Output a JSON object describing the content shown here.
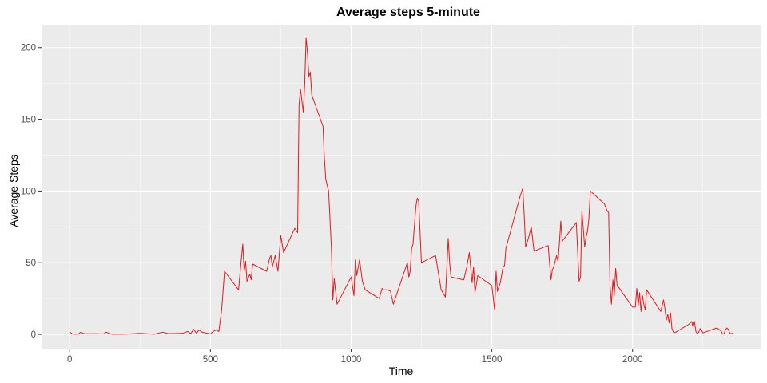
{
  "chart_data": {
    "type": "line",
    "title": "Average steps 5-minute",
    "xlabel": "Time",
    "ylabel": "Average Steps",
    "xlim": [
      -100,
      2455
    ],
    "ylim": [
      -10,
      216
    ],
    "xticks": [
      0,
      500,
      1000,
      1500,
      2000
    ],
    "yticks": [
      0,
      50,
      100,
      150,
      200
    ],
    "grid": true,
    "panel_background": "#ebebeb",
    "line_color": "#e31a1c",
    "series": [
      {
        "x": [
          0,
          10,
          20,
          30,
          40,
          50,
          100,
          120,
          130,
          150,
          200,
          250,
          300,
          330,
          350,
          400,
          420,
          430,
          440,
          450,
          460,
          470,
          500,
          510,
          520,
          530,
          540,
          550,
          600,
          610,
          615,
          620,
          625,
          630,
          640,
          645,
          650,
          700,
          710,
          715,
          720,
          730,
          740,
          750,
          760,
          800,
          810,
          815,
          820,
          830,
          835,
          840,
          845,
          850,
          855,
          860,
          900,
          905,
          910,
          920,
          930,
          935,
          940,
          950,
          1000,
          1010,
          1015,
          1020,
          1030,
          1040,
          1050,
          1100,
          1110,
          1115,
          1120,
          1130,
          1140,
          1150,
          1200,
          1205,
          1210,
          1215,
          1220,
          1230,
          1235,
          1240,
          1250,
          1300,
          1320,
          1335,
          1340,
          1345,
          1350,
          1355,
          1400,
          1410,
          1420,
          1430,
          1435,
          1440,
          1450,
          1500,
          1510,
          1515,
          1520,
          1530,
          1540,
          1545,
          1550,
          1600,
          1610,
          1615,
          1620,
          1630,
          1640,
          1650,
          1700,
          1710,
          1715,
          1720,
          1730,
          1735,
          1740,
          1745,
          1750,
          1800,
          1810,
          1815,
          1820,
          1830,
          1835,
          1840,
          1845,
          1850,
          1900,
          1910,
          1915,
          1920,
          1925,
          1930,
          1935,
          1940,
          1945,
          1950,
          2000,
          2010,
          2015,
          2020,
          2025,
          2030,
          2035,
          2040,
          2045,
          2050,
          2100,
          2110,
          2115,
          2120,
          2125,
          2130,
          2135,
          2140,
          2145,
          2150,
          2200,
          2210,
          2215,
          2220,
          2225,
          2230,
          2235,
          2240,
          2245,
          2250,
          2300,
          2310,
          2315,
          2320,
          2325,
          2330,
          2335,
          2340,
          2345,
          2350,
          2355
        ],
        "y": [
          1.7,
          0.3,
          0.1,
          0.2,
          1.5,
          0.5,
          0.4,
          0.3,
          1.5,
          0.1,
          0.2,
          0.7,
          0.1,
          1.5,
          0.5,
          0.7,
          2.0,
          0.5,
          3.5,
          0.9,
          3.0,
          1.5,
          0.3,
          2.0,
          3.0,
          2.0,
          17.0,
          44.0,
          31.0,
          53.0,
          63.0,
          44.0,
          51.0,
          37.0,
          42.0,
          38.0,
          49.0,
          44.0,
          53.0,
          55.0,
          47.0,
          55.0,
          44.0,
          69.0,
          57.0,
          74.0,
          71.0,
          160.0,
          171.0,
          155.0,
          175.0,
          207.0,
          196.0,
          180.0,
          183.0,
          167.0,
          145.0,
          123.0,
          108.0,
          100.0,
          60.0,
          24.0,
          39.0,
          21.0,
          40.0,
          27.0,
          52.0,
          41.0,
          52.0,
          37.0,
          31.0,
          25.0,
          32.0,
          31.0,
          31.0,
          31.0,
          30.0,
          21.0,
          50.0,
          40.0,
          44.0,
          60.0,
          63.0,
          89.0,
          95.0,
          93.0,
          50.0,
          55.0,
          31.0,
          26.0,
          45.0,
          67.0,
          50.0,
          40.0,
          38.0,
          46.0,
          57.0,
          36.0,
          47.0,
          29.0,
          41.0,
          34.0,
          17.0,
          44.0,
          30.0,
          36.0,
          47.0,
          48.0,
          60.0,
          96.0,
          102.0,
          83.0,
          61.0,
          67.0,
          75.0,
          58.0,
          62.0,
          38.0,
          45.0,
          47.0,
          55.0,
          51.0,
          63.0,
          79.0,
          65.0,
          78.0,
          37.0,
          40.0,
          86.0,
          61.0,
          68.0,
          72.0,
          81.0,
          100.0,
          91.0,
          86.0,
          85.0,
          34.0,
          21.0,
          38.0,
          27.0,
          46.0,
          34.0,
          33.0,
          19.0,
          19.0,
          32.0,
          20.0,
          29.0,
          16.0,
          27.0,
          21.0,
          17.0,
          31.0,
          16.0,
          24.0,
          18.0,
          10.0,
          14.0,
          8.0,
          15.0,
          4.0,
          1.5,
          1.2,
          7.0,
          9.0,
          5.0,
          9.0,
          2.0,
          0.5,
          1.5,
          4.0,
          3.0,
          1.0,
          4.5,
          3.0,
          2.2,
          0.2,
          0.5,
          3.0,
          4.5,
          3.5,
          1.0,
          0.3,
          1.0
        ]
      }
    ]
  }
}
